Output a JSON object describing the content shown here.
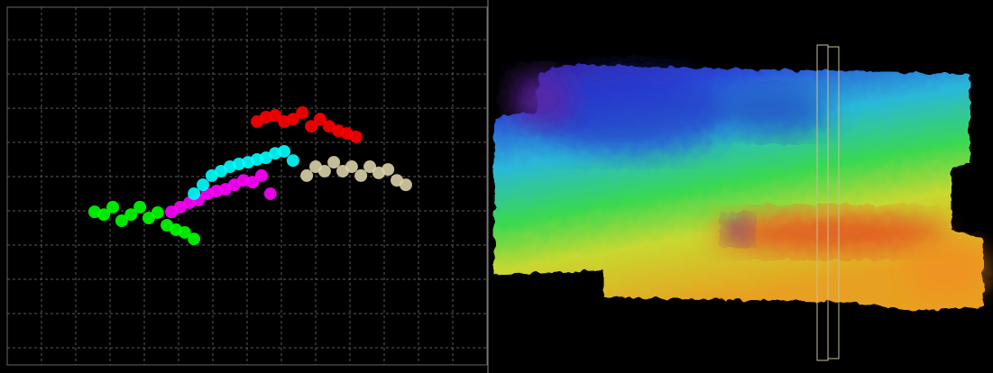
{
  "chart_data": {
    "type": "scatter",
    "xlim": [
      0,
      14
    ],
    "ylim": [
      0,
      10.45
    ],
    "xticks": [
      1,
      2,
      3,
      4,
      5,
      6,
      7,
      8,
      9,
      10,
      11,
      12,
      13
    ],
    "yticks": [
      0.5,
      1.5,
      2.5,
      3.5,
      4.5,
      5.5,
      6.5,
      7.5,
      8.5,
      9.5
    ],
    "grid": true,
    "series": [
      {
        "color": "#00ff00",
        "x": [
          2.55,
          2.82,
          3.08,
          3.34,
          3.61,
          3.87,
          4.13,
          4.39,
          4.66,
          4.92,
          5.18,
          5.45
        ],
        "values": [
          4.47,
          4.39,
          4.61,
          4.21,
          4.39,
          4.61,
          4.29,
          4.45,
          4.08,
          3.95,
          3.87,
          3.68
        ]
      },
      {
        "color": "#ff00ff",
        "x": [
          4.79,
          5.05,
          5.32,
          5.58,
          5.84,
          6.11,
          6.37,
          6.63,
          6.89,
          7.16,
          7.42,
          7.68
        ],
        "values": [
          4.47,
          4.61,
          4.74,
          4.82,
          5.0,
          5.08,
          5.13,
          5.26,
          5.39,
          5.34,
          5.53,
          5.0
        ]
      },
      {
        "color": "#00ffff",
        "x": [
          5.45,
          5.71,
          5.97,
          6.24,
          6.5,
          6.76,
          7.03,
          7.29,
          7.55,
          7.82,
          8.08,
          8.34
        ],
        "values": [
          5.0,
          5.26,
          5.53,
          5.66,
          5.79,
          5.87,
          5.92,
          6.0,
          6.05,
          6.18,
          6.24,
          5.97
        ]
      },
      {
        "color": "#ff0000",
        "x": [
          7.29,
          7.55,
          7.82,
          8.08,
          8.34,
          8.61,
          8.87,
          9.13,
          9.39,
          9.66,
          9.92,
          10.18
        ],
        "values": [
          7.11,
          7.24,
          7.29,
          7.11,
          7.18,
          7.37,
          6.97,
          7.18,
          6.97,
          6.84,
          6.76,
          6.66
        ]
      },
      {
        "color": "#d8d0a8",
        "x": [
          8.74,
          9.0,
          9.26,
          9.53,
          9.79,
          10.05,
          10.32,
          10.58,
          10.84,
          11.11,
          11.37,
          11.63
        ],
        "values": [
          5.53,
          5.79,
          5.66,
          5.92,
          5.66,
          5.79,
          5.53,
          5.79,
          5.61,
          5.71,
          5.39,
          5.26
        ]
      }
    ]
  }
}
